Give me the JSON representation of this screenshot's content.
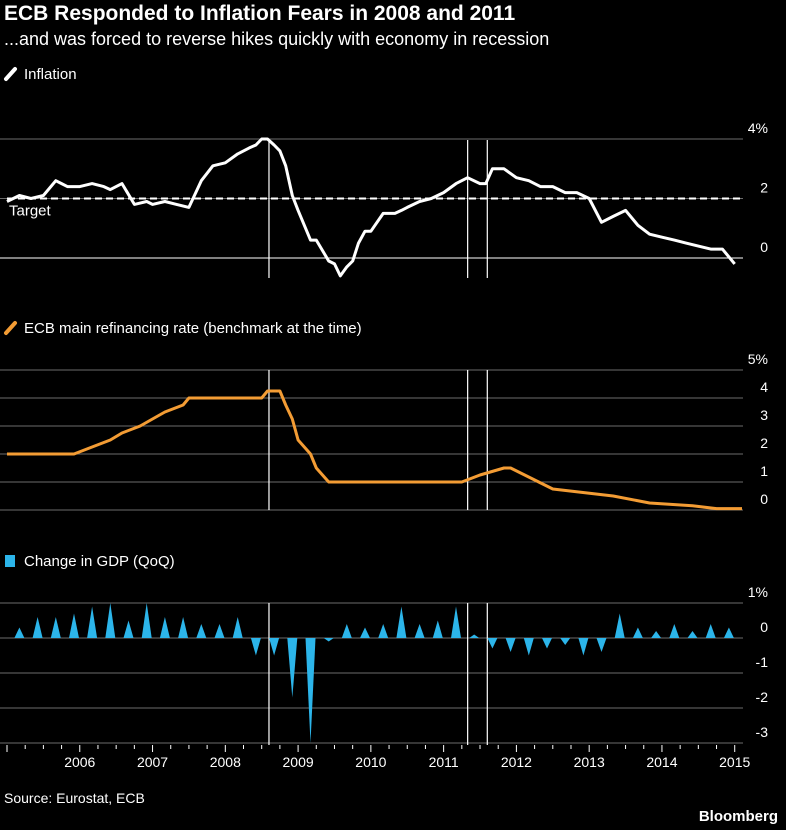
{
  "header": {
    "title": "ECB Responded to Inflation Fears in 2008 and 2011",
    "subtitle": "...and was forced to reverse hikes quickly with economy in recession"
  },
  "footer": {
    "source": "Source: Eurostat, ECB",
    "brand": "Bloomberg"
  },
  "colors": {
    "background": "#000000",
    "inflation": "#ffffff",
    "refi": "#f39c34",
    "gdp": "#2cb5ea",
    "grid": "#6b6b6b"
  },
  "chart_data": [
    {
      "type": "line",
      "legend": "Inflation",
      "reference_line": {
        "y": 2,
        "label": "Target"
      },
      "y_ticks": [
        {
          "value": 4,
          "label": "4%"
        },
        {
          "value": 2,
          "label": "2"
        },
        {
          "value": 0,
          "label": "0"
        }
      ],
      "ylim": [
        -0.6,
        4.4
      ],
      "xlim": [
        2005.0,
        2015.1
      ],
      "vlines": [
        2008.6,
        2011.33,
        2011.6
      ],
      "series": [
        {
          "x": [
            2005.0,
            2005.17,
            2005.33,
            2005.5,
            2005.67,
            2005.75,
            2005.83,
            2006.0,
            2006.17,
            2006.33,
            2006.42,
            2006.58,
            2006.75,
            2006.92,
            2007.0,
            2007.17,
            2007.33,
            2007.5,
            2007.67,
            2007.83,
            2008.0,
            2008.17,
            2008.33,
            2008.42,
            2008.5,
            2008.58,
            2008.67,
            2008.75,
            2008.83,
            2008.92,
            2009.0,
            2009.17,
            2009.25,
            2009.42,
            2009.5,
            2009.58,
            2009.67,
            2009.75,
            2009.83,
            2009.92,
            2010.0,
            2010.17,
            2010.33,
            2010.42,
            2010.5,
            2010.67,
            2010.83,
            2011.0,
            2011.17,
            2011.33,
            2011.5,
            2011.58,
            2011.67,
            2011.83,
            2012.0,
            2012.17,
            2012.33,
            2012.5,
            2012.67,
            2012.83,
            2013.0,
            2013.17,
            2013.33,
            2013.5,
            2013.67,
            2013.83,
            2014.0,
            2014.17,
            2014.33,
            2014.5,
            2014.67,
            2014.83,
            2015.0
          ],
          "y": [
            1.9,
            2.1,
            2.0,
            2.1,
            2.6,
            2.5,
            2.4,
            2.4,
            2.5,
            2.4,
            2.3,
            2.5,
            1.8,
            1.9,
            1.8,
            1.9,
            1.8,
            1.7,
            2.6,
            3.1,
            3.2,
            3.5,
            3.7,
            3.8,
            4.0,
            4.0,
            3.8,
            3.6,
            3.1,
            2.1,
            1.6,
            0.6,
            0.6,
            -0.1,
            -0.2,
            -0.6,
            -0.3,
            -0.1,
            0.5,
            0.9,
            0.9,
            1.5,
            1.5,
            1.6,
            1.7,
            1.9,
            2.0,
            2.2,
            2.5,
            2.7,
            2.5,
            2.5,
            3.0,
            3.0,
            2.7,
            2.6,
            2.4,
            2.4,
            2.2,
            2.2,
            2.0,
            1.2,
            1.4,
            1.6,
            1.1,
            0.8,
            0.7,
            0.6,
            0.5,
            0.4,
            0.3,
            0.3,
            -0.2
          ]
        }
      ]
    },
    {
      "type": "line",
      "legend": "ECB main refinancing rate (benchmark at the time)",
      "y_ticks": [
        {
          "value": 5,
          "label": "5%"
        },
        {
          "value": 4,
          "label": "4"
        },
        {
          "value": 3,
          "label": "3"
        },
        {
          "value": 2,
          "label": "2"
        },
        {
          "value": 1,
          "label": "1"
        },
        {
          "value": 0,
          "label": "0"
        }
      ],
      "ylim": [
        0,
        5
      ],
      "xlim": [
        2005.0,
        2015.1
      ],
      "vlines": [
        2008.6,
        2011.33,
        2011.6
      ],
      "series": [
        {
          "x": [
            2005.0,
            2005.92,
            2006.17,
            2006.42,
            2006.58,
            2006.83,
            2007.0,
            2007.17,
            2007.42,
            2007.5,
            2008.5,
            2008.58,
            2008.75,
            2008.83,
            2008.92,
            2009.0,
            2009.17,
            2009.25,
            2009.42,
            2011.25,
            2011.5,
            2011.83,
            2011.92,
            2012.5,
            2013.33,
            2013.83,
            2014.42,
            2014.75,
            2015.1
          ],
          "y": [
            2.0,
            2.0,
            2.25,
            2.5,
            2.75,
            3.0,
            3.25,
            3.5,
            3.75,
            4.0,
            4.0,
            4.25,
            4.25,
            3.75,
            3.25,
            2.5,
            2.0,
            1.5,
            1.0,
            1.0,
            1.25,
            1.5,
            1.5,
            0.75,
            0.5,
            0.25,
            0.15,
            0.05,
            0.05
          ]
        }
      ]
    },
    {
      "type": "bar",
      "legend": "Change in GDP (QoQ)",
      "y_ticks": [
        {
          "value": 1,
          "label": "1%"
        },
        {
          "value": 0,
          "label": "0"
        },
        {
          "value": -1,
          "label": "-1"
        },
        {
          "value": -2,
          "label": "-2"
        },
        {
          "value": -3,
          "label": "-3"
        }
      ],
      "ylim": [
        -3.3,
        1.0
      ],
      "xlim": [
        2005.0,
        2015.1
      ],
      "vlines": [
        2008.6,
        2011.33,
        2011.6
      ],
      "x_tick_labels": [
        "2006",
        "2007",
        "2008",
        "2009",
        "2010",
        "2011",
        "2012",
        "2013",
        "2014",
        "2015"
      ],
      "quarters": [
        2005.17,
        2005.42,
        2005.67,
        2005.92,
        2006.17,
        2006.42,
        2006.67,
        2006.92,
        2007.17,
        2007.42,
        2007.67,
        2007.92,
        2008.17,
        2008.42,
        2008.67,
        2008.92,
        2009.17,
        2009.42,
        2009.67,
        2009.92,
        2010.17,
        2010.42,
        2010.67,
        2010.92,
        2011.17,
        2011.42,
        2011.67,
        2011.92,
        2012.17,
        2012.42,
        2012.67,
        2012.92,
        2013.17,
        2013.42,
        2013.67,
        2013.92,
        2014.17,
        2014.42,
        2014.67,
        2014.92
      ],
      "values": [
        0.3,
        0.6,
        0.6,
        0.7,
        0.9,
        1.0,
        0.5,
        1.0,
        0.6,
        0.6,
        0.4,
        0.4,
        0.6,
        -0.5,
        -0.5,
        -1.7,
        -3.0,
        -0.1,
        0.4,
        0.3,
        0.4,
        0.9,
        0.4,
        0.5,
        0.9,
        0.1,
        -0.3,
        -0.4,
        -0.5,
        -0.3,
        -0.2,
        -0.5,
        -0.4,
        0.7,
        0.3,
        0.2,
        0.4,
        0.2,
        0.4,
        0.3
      ]
    }
  ]
}
